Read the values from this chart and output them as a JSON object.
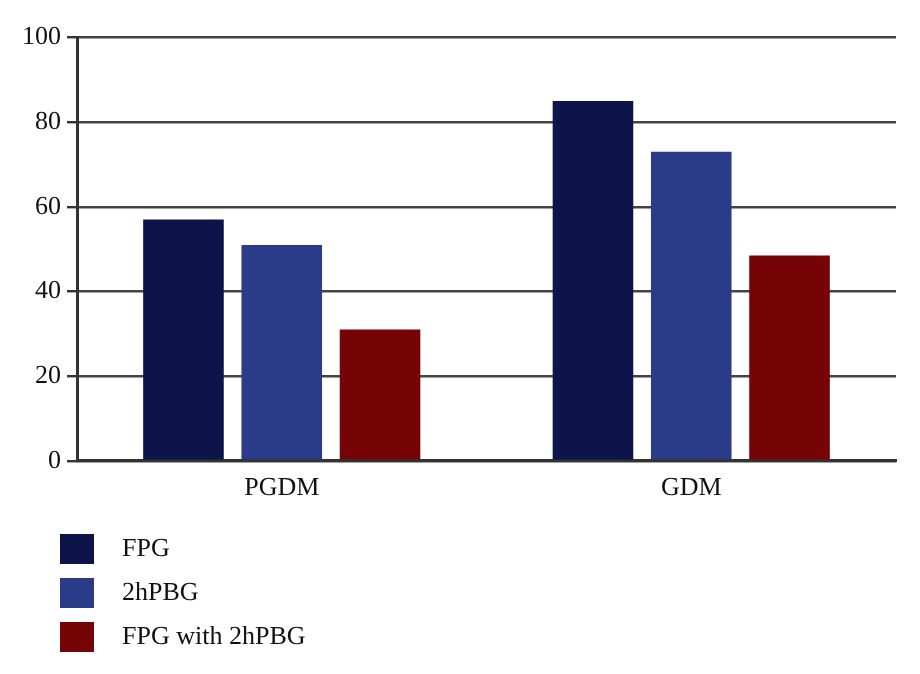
{
  "chart_data": {
    "type": "bar",
    "categories": [
      "PGDM",
      "GDM"
    ],
    "series": [
      {
        "name": "FPG",
        "color": "#0c1449",
        "values": [
          57,
          85
        ]
      },
      {
        "name": "2hPBG",
        "color": "#2a3b8a",
        "values": [
          51,
          73
        ]
      },
      {
        "name": "FPG with 2hPBG",
        "color": "#760407",
        "values": [
          31,
          48.5
        ]
      }
    ],
    "ylim": [
      0,
      100
    ],
    "yticks": [
      0,
      20,
      40,
      60,
      80,
      100
    ],
    "grid": "y",
    "legend": "bottom left"
  }
}
